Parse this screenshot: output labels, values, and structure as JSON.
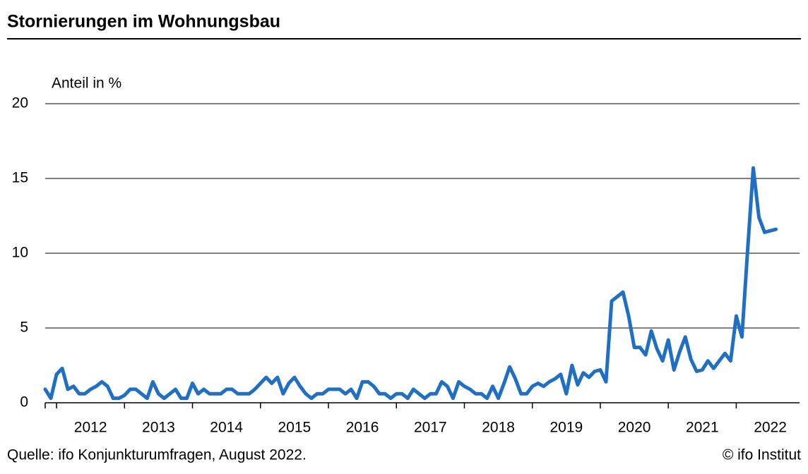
{
  "chart_data": {
    "type": "line",
    "title": "Stornierungen im Wohnungsbau",
    "y_label": "Anteil in %",
    "source": "Quelle: ifo Konjunkturumfragen, August 2022.",
    "credit": "© ifo Institut",
    "color": "#1f6fc5",
    "grid": true,
    "ylim": [
      0,
      20
    ],
    "yticks": [
      0,
      5,
      10,
      15,
      20
    ],
    "categories": [
      null,
      null,
      null,
      null,
      null,
      null,
      null,
      null,
      "2012",
      null,
      null,
      null,
      null,
      null,
      null,
      null,
      null,
      null,
      null,
      null,
      "2013",
      null,
      null,
      null,
      null,
      null,
      null,
      null,
      null,
      null,
      null,
      null,
      "2014",
      null,
      null,
      null,
      null,
      null,
      null,
      null,
      null,
      null,
      null,
      null,
      "2015",
      null,
      null,
      null,
      null,
      null,
      null,
      null,
      null,
      null,
      null,
      null,
      "2016",
      null,
      null,
      null,
      null,
      null,
      null,
      null,
      null,
      null,
      null,
      null,
      "2017",
      null,
      null,
      null,
      null,
      null,
      null,
      null,
      null,
      null,
      null,
      null,
      "2018",
      null,
      null,
      null,
      null,
      null,
      null,
      null,
      null,
      null,
      null,
      null,
      "2019",
      null,
      null,
      null,
      null,
      null,
      null,
      null,
      null,
      null,
      null,
      null,
      "2020",
      null,
      null,
      null,
      null,
      null,
      null,
      null,
      null,
      null,
      null,
      null,
      "2021",
      null,
      null,
      null,
      null,
      null,
      null,
      null,
      null,
      null,
      null,
      null,
      "2022",
      null
    ],
    "values": [
      0.9,
      0.3,
      1.9,
      2.3,
      0.9,
      1.1,
      0.6,
      0.6,
      0.9,
      1.1,
      1.4,
      1.1,
      0.3,
      0.3,
      0.5,
      0.9,
      0.9,
      0.6,
      0.3,
      1.4,
      0.6,
      0.3,
      0.6,
      0.9,
      0.3,
      0.3,
      1.3,
      0.6,
      0.9,
      0.6,
      0.6,
      0.6,
      0.9,
      0.9,
      0.6,
      0.6,
      0.6,
      0.9,
      1.3,
      1.7,
      1.3,
      1.7,
      0.6,
      1.3,
      1.7,
      1.1,
      0.6,
      0.3,
      0.6,
      0.6,
      0.9,
      0.9,
      0.9,
      0.6,
      0.9,
      0.3,
      1.4,
      1.4,
      1.1,
      0.6,
      0.6,
      0.3,
      0.6,
      0.6,
      0.3,
      0.9,
      0.6,
      0.3,
      0.6,
      0.6,
      1.4,
      1.1,
      0.3,
      1.4,
      1.1,
      0.9,
      0.6,
      0.6,
      0.3,
      1.1,
      0.3,
      1.3,
      2.4,
      1.6,
      0.6,
      0.6,
      1.1,
      1.3,
      1.1,
      1.4,
      1.6,
      1.9,
      0.6,
      2.5,
      1.2,
      2.0,
      1.7,
      2.1,
      2.2,
      1.4,
      6.8,
      7.1,
      7.4,
      5.8,
      3.7,
      3.7,
      3.2,
      4.8,
      3.6,
      2.8,
      4.2,
      2.2,
      3.4,
      4.4,
      2.9,
      2.1,
      2.2,
      2.8,
      2.3,
      2.8,
      3.3,
      2.8,
      5.8,
      4.4,
      10.2,
      15.7,
      12.4,
      11.4,
      11.5,
      11.6
    ]
  }
}
